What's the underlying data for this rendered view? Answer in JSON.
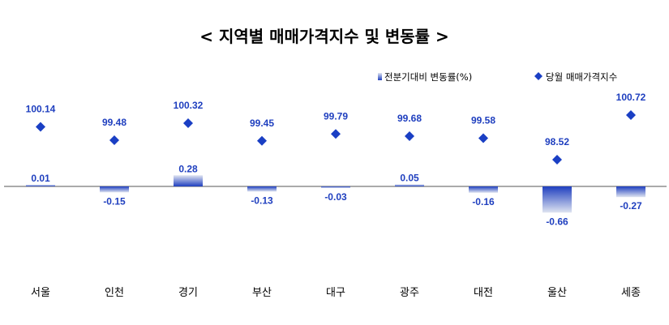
{
  "chart_data": {
    "type": "bar",
    "title": "< 지역별 매매가격지수 및 변동률 >",
    "categories": [
      "서울",
      "인천",
      "경기",
      "부산",
      "대구",
      "광주",
      "대전",
      "울산",
      "세종"
    ],
    "series": [
      {
        "name": "전분기대비 변동률(%)",
        "type": "bar",
        "values": [
          0.01,
          -0.15,
          0.28,
          -0.13,
          -0.03,
          0.05,
          -0.16,
          -0.66,
          -0.27
        ]
      },
      {
        "name": "당월 매매가격지수",
        "type": "scatter",
        "marker": "diamond",
        "values": [
          100.14,
          99.48,
          100.32,
          99.45,
          99.79,
          99.68,
          99.58,
          98.52,
          100.72
        ]
      }
    ],
    "colors": {
      "bar_top": "#1f3fbf",
      "bar_bottom": "#dfe4f1",
      "marker": "#1a3fc4",
      "label": "#1f3fbf",
      "axis": "#555555"
    },
    "legend_position": "top-right",
    "grid": false
  }
}
